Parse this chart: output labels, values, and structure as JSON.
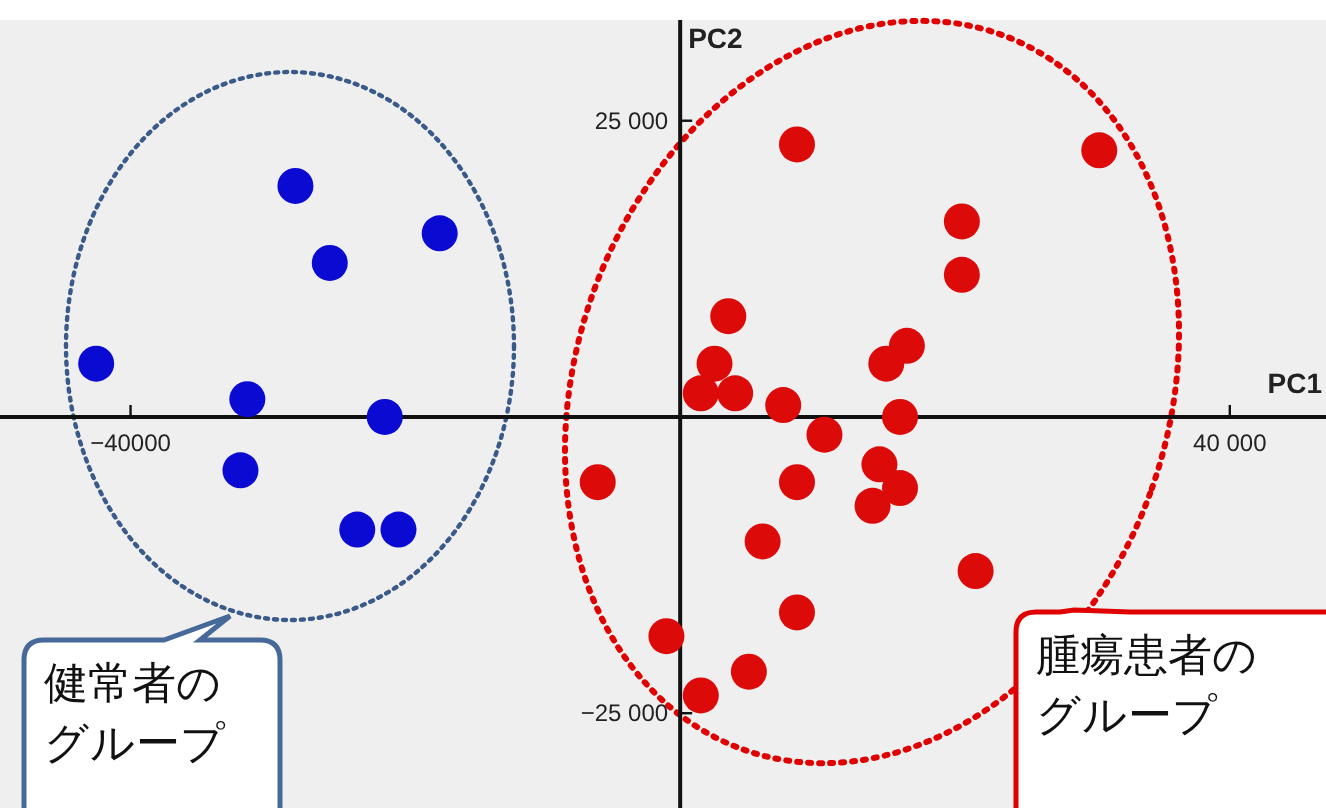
{
  "chart_data": {
    "type": "scatter",
    "xlabel": "PC1",
    "ylabel": "PC2",
    "marker": "circle",
    "xlim": [
      -49500,
      47000
    ],
    "ylim": [
      -33000,
      33500
    ],
    "xticks": [
      {
        "value": -40000,
        "label": "−40000"
      },
      {
        "value": 40000,
        "label": "40 000"
      }
    ],
    "yticks": [
      {
        "value": 25000,
        "label": "25 000"
      },
      {
        "value": -25000,
        "label": "−25 000"
      }
    ],
    "series": [
      {
        "color": "#0a0ad2",
        "x": [
          -42500,
          -28000,
          -17500,
          -25500,
          -31500,
          -21500,
          -32000,
          -23500,
          -20500
        ],
        "values": [
          4500,
          19500,
          15500,
          13000,
          1500,
          0,
          -4500,
          -9500,
          -9500
        ]
      },
      {
        "color": "#dd0a0a",
        "x": [
          8500,
          30500,
          20500,
          20500,
          3500,
          16500,
          15000,
          2500,
          1500,
          4000,
          7500,
          16000,
          10500,
          -6000,
          14500,
          8500,
          16000,
          14000,
          6000,
          21500,
          8500,
          -1000,
          5000,
          1500
        ],
        "values": [
          23000,
          22500,
          16500,
          12000,
          8500,
          6000,
          4500,
          4500,
          2000,
          2000,
          1000,
          0,
          -1500,
          -5500,
          -4000,
          -5500,
          -6000,
          -7500,
          -10500,
          -13000,
          -16500,
          -18500,
          -21500,
          -23500
        ]
      }
    ],
    "annotations": [
      "健常者のグループ",
      "腫瘍患者のグループ"
    ]
  }
}
